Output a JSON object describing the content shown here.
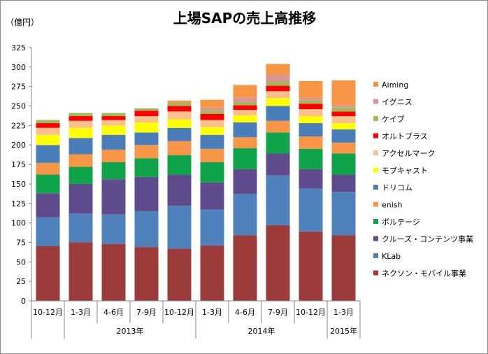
{
  "chart_data": {
    "type": "bar",
    "stacked": true,
    "title": "上場SAPの売上高推移",
    "unit_label": "（億円）",
    "ylim": [
      0,
      325
    ],
    "yticks": [
      0,
      25,
      50,
      75,
      100,
      125,
      150,
      175,
      200,
      225,
      250,
      275,
      300,
      325
    ],
    "grid": false,
    "legend_position": "right",
    "categories": [
      "10-12月",
      "1-3月",
      "4-6月",
      "7-9月",
      "10-12月",
      "1-3月",
      "4-6月",
      "7-9月",
      "10-12月",
      "1-3月"
    ],
    "year_groups": [
      {
        "label": "2013年",
        "start": 1,
        "end": 4
      },
      {
        "label": "2014年",
        "start": 5,
        "end": 8
      },
      {
        "label": "2015年",
        "start": 9,
        "end": 9
      }
    ],
    "series": [
      {
        "name": "ネクソン・モバイル事業",
        "color": "#9b3b3a",
        "values": [
          70,
          75,
          73,
          69,
          67,
          71,
          84,
          97,
          89,
          84
        ]
      },
      {
        "name": "KLab",
        "color": "#4f81bd",
        "values": [
          37,
          37,
          38,
          46,
          55,
          46,
          53,
          64,
          55,
          56
        ]
      },
      {
        "name": "クルーズ・コンテンツ事業",
        "color": "#5f4b8b",
        "values": [
          31,
          38,
          45,
          44,
          40,
          35,
          32,
          28,
          25,
          22
        ]
      },
      {
        "name": "ボルテージ",
        "color": "#0fa44a",
        "values": [
          24,
          22,
          22,
          24,
          25,
          26,
          27,
          27,
          26,
          27
        ]
      },
      {
        "name": "enish",
        "color": "#f79646",
        "values": [
          15,
          16,
          16,
          17,
          18,
          17,
          14,
          15,
          16,
          14
        ]
      },
      {
        "name": "ドリコム",
        "color": "#4a7ebb",
        "values": [
          23,
          21,
          19,
          16,
          17,
          18,
          19,
          19,
          17,
          17
        ]
      },
      {
        "name": "モブキャスト",
        "color": "#ffff00",
        "values": [
          13,
          13,
          12,
          13,
          11,
          10,
          9,
          10,
          9,
          8
        ]
      },
      {
        "name": "アクセルマーク",
        "color": "#fac090",
        "values": [
          9,
          9,
          7,
          8,
          10,
          9,
          7,
          9,
          9,
          9
        ]
      },
      {
        "name": "オルトプラス",
        "color": "#ff0000",
        "values": [
          6,
          6,
          5,
          7,
          7,
          8,
          6,
          7,
          7,
          6
        ]
      },
      {
        "name": "ケイブ",
        "color": "#9bbb59",
        "values": [
          4,
          4,
          4,
          3,
          4,
          4,
          4,
          5,
          4,
          5
        ]
      },
      {
        "name": "イグニス",
        "color": "#d99694",
        "values": [
          0,
          0,
          0,
          0,
          0,
          4,
          6,
          9,
          3,
          3
        ]
      },
      {
        "name": "Aiming",
        "color": "#f79646",
        "values": [
          0,
          0,
          0,
          0,
          3,
          10,
          16,
          14,
          22,
          32
        ]
      }
    ]
  }
}
